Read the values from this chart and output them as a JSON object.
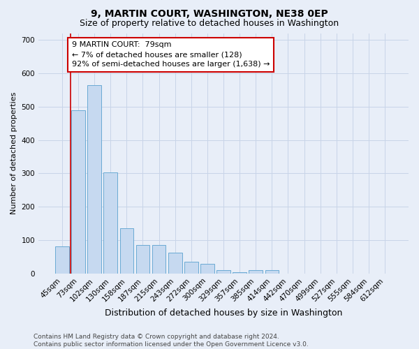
{
  "title": "9, MARTIN COURT, WASHINGTON, NE38 0EP",
  "subtitle": "Size of property relative to detached houses in Washington",
  "xlabel": "Distribution of detached houses by size in Washington",
  "ylabel": "Number of detached properties",
  "categories": [
    "45sqm",
    "73sqm",
    "102sqm",
    "130sqm",
    "158sqm",
    "187sqm",
    "215sqm",
    "243sqm",
    "272sqm",
    "300sqm",
    "329sqm",
    "357sqm",
    "385sqm",
    "414sqm",
    "442sqm",
    "470sqm",
    "499sqm",
    "527sqm",
    "555sqm",
    "584sqm",
    "612sqm"
  ],
  "values": [
    82,
    488,
    565,
    303,
    135,
    85,
    85,
    63,
    35,
    30,
    10,
    5,
    10,
    10,
    0,
    0,
    0,
    0,
    0,
    0,
    0
  ],
  "bar_color": "#c6d9f0",
  "bar_edge_color": "#6aaad4",
  "grid_color": "#c8d4e8",
  "background_color": "#e8eef8",
  "vline_x": 0.5,
  "vline_color": "#cc0000",
  "annotation_text": "9 MARTIN COURT:  79sqm\n← 7% of detached houses are smaller (128)\n92% of semi-detached houses are larger (1,638) →",
  "annotation_box_color": "#ffffff",
  "annotation_box_edge": "#cc0000",
  "ylim": [
    0,
    720
  ],
  "yticks": [
    0,
    100,
    200,
    300,
    400,
    500,
    600,
    700
  ],
  "footer": "Contains HM Land Registry data © Crown copyright and database right 2024.\nContains public sector information licensed under the Open Government Licence v3.0.",
  "title_fontsize": 10,
  "subtitle_fontsize": 9,
  "xlabel_fontsize": 9,
  "ylabel_fontsize": 8,
  "tick_fontsize": 7.5,
  "footer_fontsize": 6.5,
  "annot_fontsize": 8
}
